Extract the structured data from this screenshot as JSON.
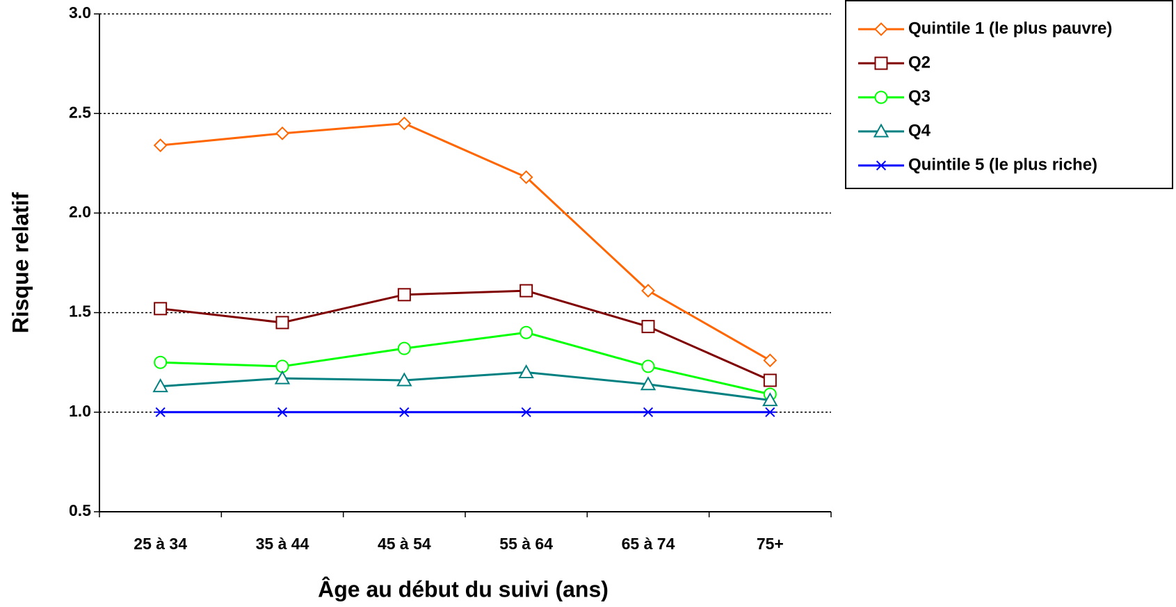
{
  "chart_data": {
    "type": "line",
    "x_label": "Âge au début du suivi (ans)",
    "y_label": "Risque relatif",
    "categories": [
      "25 à 34",
      "35 à 44",
      "45 à 54",
      "55 à 64",
      "65 à 74",
      "75+"
    ],
    "series": [
      {
        "name": "Quintile 1 (le plus pauvre)",
        "color": "#ff6600",
        "marker": "diamond",
        "values": [
          2.34,
          2.4,
          2.45,
          2.18,
          1.61,
          1.26
        ]
      },
      {
        "name": "Q2",
        "color": "#800000",
        "marker": "square",
        "values": [
          1.52,
          1.45,
          1.59,
          1.61,
          1.43,
          1.16
        ]
      },
      {
        "name": "Q3",
        "color": "#00ff00",
        "marker": "circle",
        "values": [
          1.25,
          1.23,
          1.32,
          1.4,
          1.23,
          1.09
        ]
      },
      {
        "name": "Q4",
        "color": "#008080",
        "marker": "triangle",
        "values": [
          1.13,
          1.17,
          1.16,
          1.2,
          1.14,
          1.06
        ]
      },
      {
        "name": "Quintile 5 (le plus riche)",
        "color": "#0000ff",
        "marker": "asterisk",
        "values": [
          1.0,
          1.0,
          1.0,
          1.0,
          1.0,
          1.0
        ]
      }
    ],
    "ylim": [
      0.5,
      3.0
    ],
    "yticks": [
      {
        "value": 0.5,
        "label": "0.5"
      },
      {
        "value": 1.0,
        "label": "1.0"
      },
      {
        "value": 1.5,
        "label": "1.5"
      },
      {
        "value": 2.0,
        "label": "2.0"
      },
      {
        "value": 2.5,
        "label": "2.5"
      },
      {
        "value": 3.0,
        "label": "3.0"
      }
    ],
    "grid": true,
    "legend": "right"
  }
}
